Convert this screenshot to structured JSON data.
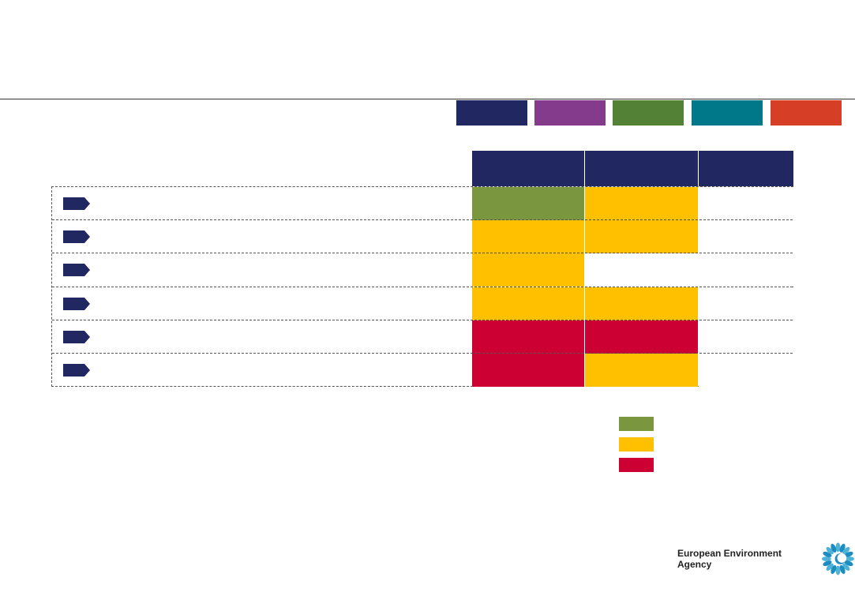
{
  "themes": [
    {
      "color": "#212760"
    },
    {
      "color": "#843b8c"
    },
    {
      "color": "#538135"
    },
    {
      "color": "#00788a"
    },
    {
      "color": "#d63f26"
    }
  ],
  "columns": [
    "",
    "",
    ""
  ],
  "rows": [
    {
      "label": "",
      "cells": [
        "#7a963e",
        "#ffc000",
        "#ffffff"
      ]
    },
    {
      "label": "",
      "cells": [
        "#ffc000",
        "#ffc000",
        "#ffffff"
      ]
    },
    {
      "label": "",
      "cells": [
        "#ffc000",
        "#ffffff",
        "#ffffff"
      ]
    },
    {
      "label": "",
      "cells": [
        "#ffc000",
        "#ffc000",
        "#ffffff"
      ]
    },
    {
      "label": "",
      "cells": [
        "#cc0033",
        "#cc0033",
        "#ffffff"
      ]
    },
    {
      "label": "",
      "cells": [
        "#cc0033",
        "#ffc000",
        "#ffffff"
      ]
    }
  ],
  "legend": [
    {
      "color": "#7a963e",
      "label": ""
    },
    {
      "color": "#ffc000",
      "label": ""
    },
    {
      "color": "#cc0033",
      "label": ""
    }
  ],
  "footer": {
    "agency_name": "European Environment Agency"
  },
  "colors": {
    "header_navy": "#212760",
    "arrow_navy": "#212760"
  }
}
